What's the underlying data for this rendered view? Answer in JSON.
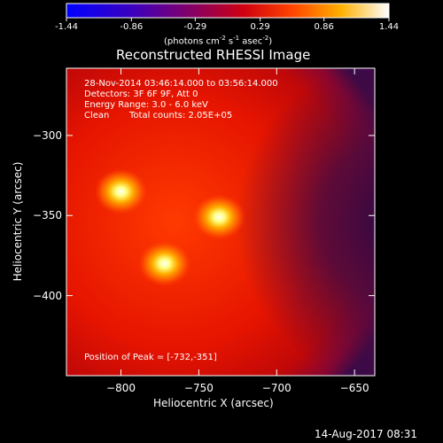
{
  "colorbar": {
    "ticks": [
      "-1.44",
      "-0.86",
      "-0.29",
      "0.29",
      "0.86",
      "1.44"
    ],
    "tick_values": [
      -1.44,
      -0.86,
      -0.29,
      0.29,
      0.86,
      1.44
    ],
    "units_text": "(photons cm",
    "units_exp1": "-2",
    "units_mid": " s",
    "units_exp2": "-1",
    "units_tail": " asec",
    "units_exp3": "-2",
    "units_close": ")",
    "min": -1.44,
    "max": 1.44,
    "colormap": "red-temperature (blue-purple-red-orange-yellow-white)"
  },
  "chart_data": {
    "type": "heatmap",
    "title": "Reconstructed RHESSI Image",
    "xlabel": "Heliocentric X (arcsec)",
    "ylabel": "Heliocentric Y (arcsec)",
    "xlim": [
      -835,
      -637
    ],
    "ylim": [
      -450,
      -258
    ],
    "xticks": [
      -800,
      -750,
      -700,
      -650
    ],
    "xtick_labels": [
      "-800",
      "-750",
      "-700",
      "-650"
    ],
    "yticks": [
      -300,
      -350,
      -400
    ],
    "ytick_labels": [
      "-300",
      "-350",
      "-400"
    ],
    "sources": [
      {
        "x": -800,
        "y": -335,
        "peak": 1.0
      },
      {
        "x": -737,
        "y": -351,
        "peak": 1.0
      },
      {
        "x": -772,
        "y": -380,
        "peak": 1.0
      }
    ],
    "annotations": [
      "28-Nov-2014 03:46:14.000 to 03:56:14.000",
      "Detectors: 3F 6F 9F, Att 0",
      "Energy Range: 3.0 - 6.0 keV",
      "Clean",
      "Total counts: 2.05E+05"
    ],
    "peak_label": "Position of Peak = [-732,-351]"
  },
  "footer": {
    "date": "14-Aug-2017 08:31"
  },
  "colors": {
    "background": "#000000",
    "text": "#ffffff",
    "cmap_low": "#0000ff",
    "cmap_mid": "#e01000",
    "cmap_high": "#ffffff"
  }
}
